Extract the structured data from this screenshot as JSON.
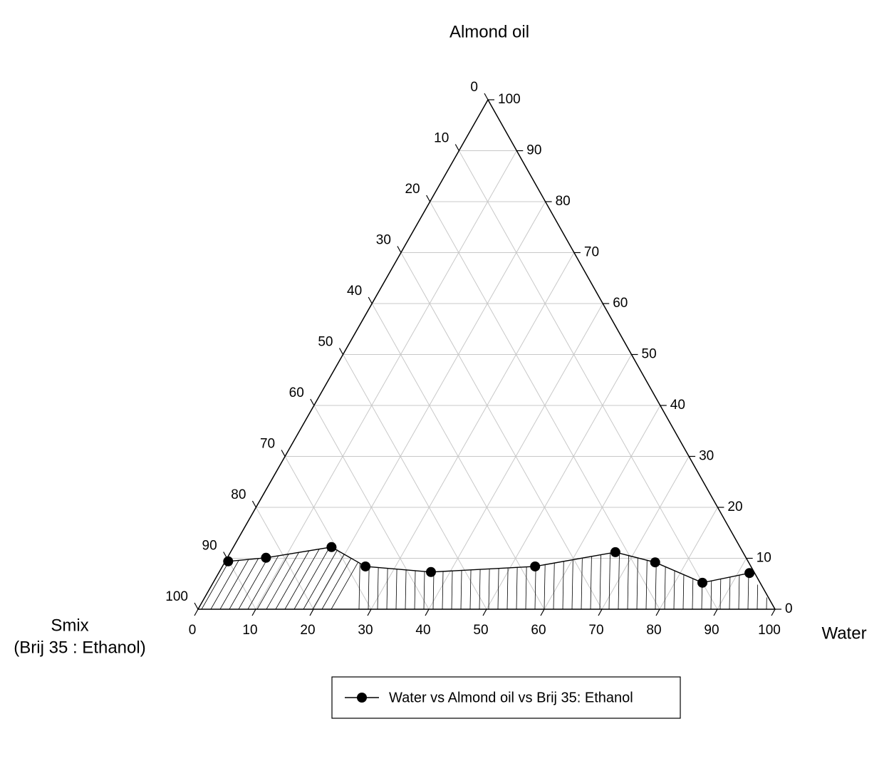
{
  "chart_data": {
    "type": "ternary",
    "top_label": "Almond oil",
    "right_label": "Water",
    "left_label": [
      "Smix",
      "(Brij 35 : Ethanol)"
    ],
    "water_lim": [
      0,
      100
    ],
    "oil_lim": [
      0,
      100
    ],
    "smix_lim": [
      0,
      100
    ],
    "water_ticks": [
      0,
      10,
      20,
      30,
      40,
      50,
      60,
      70,
      80,
      90,
      100
    ],
    "oil_ticks": [
      0,
      10,
      20,
      30,
      40,
      50,
      60,
      70,
      80,
      90,
      100
    ],
    "smix_ticks": [
      0,
      10,
      20,
      30,
      40,
      50,
      60,
      70,
      80,
      90,
      100
    ],
    "grid": true,
    "grid_color": "#c8c8c8",
    "series": [
      {
        "name": "Water vs Almond oil vs Brij 35: Ethanol",
        "color": "#000000",
        "water": [
          0.5,
          6.7,
          17,
          24.8,
          36.7,
          54.2,
          66.7,
          74.6,
          84.8,
          92
        ],
        "oil": [
          9.4,
          10.1,
          12.2,
          8.4,
          7.3,
          8.4,
          11.2,
          9.2,
          5.2,
          7.1
        ],
        "smix": [
          90.1,
          83.2,
          70.8,
          66.8,
          56,
          37.4,
          22.1,
          16.2,
          10,
          0.9
        ]
      }
    ]
  }
}
